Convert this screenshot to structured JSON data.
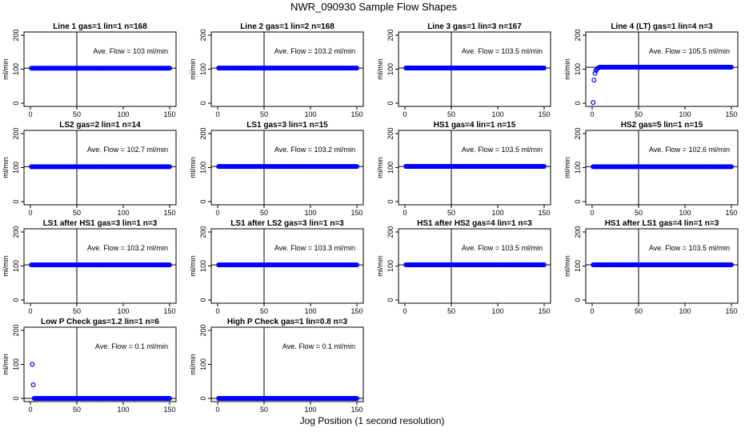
{
  "figure": {
    "title": "NWR_090930  Sample Flow Shapes",
    "xlabel": "Jog Position (1 second resolution)"
  },
  "chart_data": [
    {
      "type": "scatter",
      "title": "Line 1 gas=1 lin=1 n=168",
      "ylabel": "ml/min",
      "annotation": "Ave. Flow =  103  ml/min",
      "xlim": [
        0,
        150
      ],
      "ylim": [
        0,
        200
      ],
      "xticks": [
        0,
        50,
        100,
        150
      ],
      "yticks": [
        0,
        100,
        200
      ],
      "vline_x": 50,
      "hline_y": 103,
      "point_color": "#0000ff",
      "series": [
        {
          "x_start": 1,
          "x_end": 150,
          "level": 103,
          "early_points": []
        }
      ]
    },
    {
      "type": "scatter",
      "title": "Line 2 gas=1 lin=2 n=168",
      "ylabel": "ml/min",
      "annotation": "Ave. Flow =  103.2  ml/min",
      "xlim": [
        0,
        150
      ],
      "ylim": [
        0,
        200
      ],
      "xticks": [
        0,
        50,
        100,
        150
      ],
      "yticks": [
        0,
        100,
        200
      ],
      "vline_x": 50,
      "hline_y": 103.2,
      "point_color": "#0000ff",
      "series": [
        {
          "x_start": 1,
          "x_end": 150,
          "level": 103.2,
          "early_points": []
        }
      ]
    },
    {
      "type": "scatter",
      "title": "Line 3 gas=1 lin=3 n=167",
      "ylabel": "ml/min",
      "annotation": "Ave. Flow =  103.5  ml/min",
      "xlim": [
        0,
        150
      ],
      "ylim": [
        0,
        200
      ],
      "xticks": [
        0,
        50,
        100,
        150
      ],
      "yticks": [
        0,
        100,
        200
      ],
      "vline_x": 50,
      "hline_y": 103.5,
      "point_color": "#0000ff",
      "series": [
        {
          "x_start": 1,
          "x_end": 150,
          "level": 103.5,
          "early_points": []
        }
      ]
    },
    {
      "type": "scatter",
      "title": "Line 4 (LT) gas=1 lin=4 n=3",
      "ylabel": "ml/min",
      "annotation": "Ave. Flow =  105.5  ml/min",
      "xlim": [
        0,
        150
      ],
      "ylim": [
        0,
        200
      ],
      "xticks": [
        0,
        50,
        100,
        150
      ],
      "yticks": [
        0,
        100,
        200
      ],
      "vline_x": 50,
      "hline_y": 105.5,
      "point_color": "#0000ff",
      "series": [
        {
          "x_start": 8,
          "x_end": 150,
          "level": 106,
          "early_points": [
            [
              1,
              2
            ],
            [
              2,
              68
            ],
            [
              3,
              88
            ],
            [
              4,
              96
            ],
            [
              5,
              100
            ],
            [
              6,
              103
            ],
            [
              7,
              104
            ]
          ]
        }
      ]
    },
    {
      "type": "scatter",
      "title": "LS2 gas=2 lin=1 n=14",
      "ylabel": "ml/min",
      "annotation": "Ave. Flow =  102.7  ml/min",
      "xlim": [
        0,
        150
      ],
      "ylim": [
        0,
        200
      ],
      "xticks": [
        0,
        50,
        100,
        150
      ],
      "yticks": [
        0,
        100,
        200
      ],
      "vline_x": 50,
      "hline_y": 102.7,
      "point_color": "#0000ff",
      "series": [
        {
          "x_start": 1,
          "x_end": 150,
          "level": 102.7,
          "early_points": []
        }
      ]
    },
    {
      "type": "scatter",
      "title": "LS1 gas=3 lin=1 n=15",
      "ylabel": "ml/min",
      "annotation": "Ave. Flow =  103.2  ml/min",
      "xlim": [
        0,
        150
      ],
      "ylim": [
        0,
        200
      ],
      "xticks": [
        0,
        50,
        100,
        150
      ],
      "yticks": [
        0,
        100,
        200
      ],
      "vline_x": 50,
      "hline_y": 103.2,
      "point_color": "#0000ff",
      "series": [
        {
          "x_start": 1,
          "x_end": 150,
          "level": 103.2,
          "early_points": []
        }
      ]
    },
    {
      "type": "scatter",
      "title": "HS1 gas=4 lin=1 n=15",
      "ylabel": "ml/min",
      "annotation": "Ave. Flow =  103.5  ml/min",
      "xlim": [
        0,
        150
      ],
      "ylim": [
        0,
        200
      ],
      "xticks": [
        0,
        50,
        100,
        150
      ],
      "yticks": [
        0,
        100,
        200
      ],
      "vline_x": 50,
      "hline_y": 103.5,
      "point_color": "#0000ff",
      "series": [
        {
          "x_start": 1,
          "x_end": 150,
          "level": 103.5,
          "early_points": []
        }
      ]
    },
    {
      "type": "scatter",
      "title": "HS2 gas=5 lin=1 n=15",
      "ylabel": "ml/min",
      "annotation": "Ave. Flow =  102.6  ml/min",
      "xlim": [
        0,
        150
      ],
      "ylim": [
        0,
        200
      ],
      "xticks": [
        0,
        50,
        100,
        150
      ],
      "yticks": [
        0,
        100,
        200
      ],
      "vline_x": 50,
      "hline_y": 102.6,
      "point_color": "#0000ff",
      "series": [
        {
          "x_start": 1,
          "x_end": 150,
          "level": 102.6,
          "early_points": []
        }
      ]
    },
    {
      "type": "scatter",
      "title": "LS1 after HS1 gas=3 lin=1 n=3",
      "ylabel": "ml/min",
      "annotation": "Ave. Flow =  103.2  ml/min",
      "xlim": [
        0,
        150
      ],
      "ylim": [
        0,
        200
      ],
      "xticks": [
        0,
        50,
        100,
        150
      ],
      "yticks": [
        0,
        100,
        200
      ],
      "vline_x": 50,
      "hline_y": 103.2,
      "point_color": "#0000ff",
      "series": [
        {
          "x_start": 1,
          "x_end": 150,
          "level": 103.2,
          "early_points": []
        }
      ]
    },
    {
      "type": "scatter",
      "title": "LS1 after LS2 gas=3 lin=1 n=3",
      "ylabel": "ml/min",
      "annotation": "Ave. Flow =  103.3  ml/min",
      "xlim": [
        0,
        150
      ],
      "ylim": [
        0,
        200
      ],
      "xticks": [
        0,
        50,
        100,
        150
      ],
      "yticks": [
        0,
        100,
        200
      ],
      "vline_x": 50,
      "hline_y": 103.3,
      "point_color": "#0000ff",
      "series": [
        {
          "x_start": 1,
          "x_end": 150,
          "level": 103.3,
          "early_points": []
        }
      ]
    },
    {
      "type": "scatter",
      "title": "HS1 after HS2 gas=4 lin=1 n=3",
      "ylabel": "ml/min",
      "annotation": "Ave. Flow =  103.5  ml/min",
      "xlim": [
        0,
        150
      ],
      "ylim": [
        0,
        200
      ],
      "xticks": [
        0,
        50,
        100,
        150
      ],
      "yticks": [
        0,
        100,
        200
      ],
      "vline_x": 50,
      "hline_y": 103.5,
      "point_color": "#0000ff",
      "series": [
        {
          "x_start": 1,
          "x_end": 150,
          "level": 103.5,
          "early_points": []
        }
      ]
    },
    {
      "type": "scatter",
      "title": "HS1 after LS1 gas=4 lin=1 n=3",
      "ylabel": "ml/min",
      "annotation": "Ave. Flow =  103.5  ml/min",
      "xlim": [
        0,
        150
      ],
      "ylim": [
        0,
        200
      ],
      "xticks": [
        0,
        50,
        100,
        150
      ],
      "yticks": [
        0,
        100,
        200
      ],
      "vline_x": 50,
      "hline_y": 103.5,
      "point_color": "#0000ff",
      "series": [
        {
          "x_start": 1,
          "x_end": 150,
          "level": 103.5,
          "early_points": []
        }
      ]
    },
    {
      "type": "scatter",
      "title": "Low P Check gas=1.2 lin=1 n=6",
      "ylabel": "ml/min",
      "annotation": "Ave. Flow =  0.1  ml/min",
      "xlim": [
        0,
        150
      ],
      "ylim": [
        0,
        200
      ],
      "xticks": [
        0,
        50,
        100,
        150
      ],
      "yticks": [
        0,
        100,
        200
      ],
      "vline_x": 50,
      "hline_y": 0.1,
      "point_color": "#0000ff",
      "series": [
        {
          "x_start": 4,
          "x_end": 150,
          "level": 0.1,
          "early_points": [
            [
              2,
              100
            ],
            [
              3,
              40
            ]
          ]
        }
      ]
    },
    {
      "type": "scatter",
      "title": "High P Check gas=1 lin=0.8 n=3",
      "ylabel": "ml/min",
      "annotation": "Ave. Flow =  0.1  ml/min",
      "xlim": [
        0,
        150
      ],
      "ylim": [
        0,
        200
      ],
      "xticks": [
        0,
        50,
        100,
        150
      ],
      "yticks": [
        0,
        100,
        200
      ],
      "vline_x": 50,
      "hline_y": 0.1,
      "point_color": "#0000ff",
      "series": [
        {
          "x_start": 1,
          "x_end": 150,
          "level": 0.1,
          "early_points": []
        }
      ]
    }
  ]
}
